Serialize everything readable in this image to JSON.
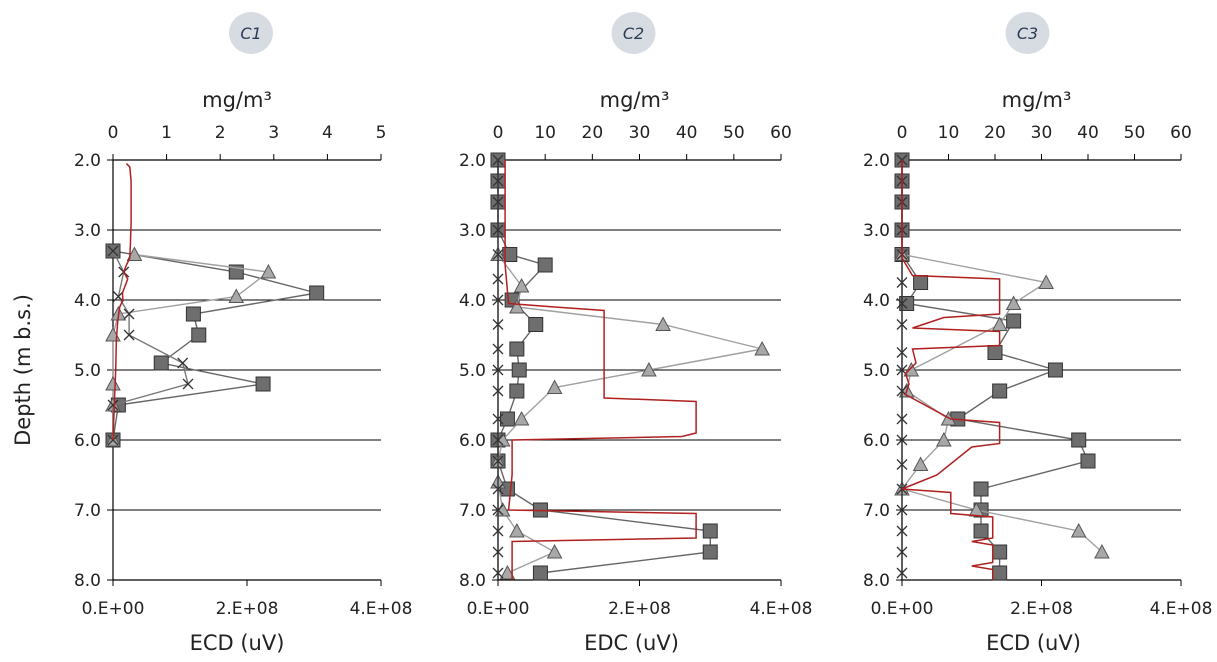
{
  "chart_data": [
    {
      "type": "line",
      "badge": "C1",
      "top_axis_label": "mg/m³",
      "top_ticks": [
        "0",
        "1",
        "2",
        "3",
        "4",
        "5"
      ],
      "top_range": [
        0,
        5
      ],
      "bottom_axis_label": "ECD (uV)",
      "bottom_ticks": [
        "0.E+00",
        "2.E+08",
        "4.E+08"
      ],
      "bottom_range": [
        0,
        400000000
      ],
      "ylabel": "Depth (m b.s.)",
      "yticks": [
        "2.0",
        "3.0",
        "4.0",
        "5.0",
        "6.0",
        "7.0",
        "8.0"
      ],
      "ylim": [
        2.0,
        8.0
      ],
      "grid": "horizontal",
      "series": [
        {
          "marker": "square",
          "color": "#666666",
          "axis": "top",
          "points": [
            [
              0.0,
              3.3
            ],
            [
              2.3,
              3.6
            ],
            [
              3.8,
              3.9
            ],
            [
              1.5,
              4.2
            ],
            [
              1.6,
              4.5
            ],
            [
              0.9,
              4.9
            ],
            [
              2.8,
              5.2
            ],
            [
              0.1,
              5.5
            ],
            [
              0.0,
              6.0
            ]
          ]
        },
        {
          "marker": "triangle",
          "color": "#a0a0a0",
          "axis": "top",
          "points": [
            [
              0.4,
              3.35
            ],
            [
              2.9,
              3.6
            ],
            [
              2.3,
              3.95
            ],
            [
              0.1,
              4.2
            ],
            [
              0.0,
              4.5
            ],
            [
              0.0,
              5.2
            ],
            [
              0.0,
              5.5
            ],
            [
              0.0,
              6.0
            ]
          ]
        },
        {
          "marker": "x",
          "color": "#777777",
          "axis": "top",
          "points": [
            [
              0.0,
              3.3
            ],
            [
              0.2,
              3.6
            ],
            [
              0.1,
              3.95
            ],
            [
              0.3,
              4.2
            ],
            [
              0.3,
              4.5
            ],
            [
              1.3,
              4.9
            ],
            [
              1.4,
              5.2
            ],
            [
              0.0,
              5.5
            ],
            [
              0.0,
              6.0
            ]
          ]
        },
        {
          "marker": "none",
          "color": "#b02020",
          "axis": "bottom",
          "points": [
            [
              20000000,
              2.05
            ],
            [
              25000000,
              2.1
            ],
            [
              27000000,
              2.3
            ],
            [
              27000000,
              2.6
            ],
            [
              27000000,
              2.9
            ],
            [
              26000000,
              3.2
            ],
            [
              25000000,
              3.4
            ],
            [
              20000000,
              3.5
            ],
            [
              16000000,
              3.6
            ],
            [
              22000000,
              3.7
            ],
            [
              18000000,
              3.8
            ],
            [
              14000000,
              3.9
            ],
            [
              15000000,
              4.0
            ],
            [
              10000000,
              4.1
            ],
            [
              7000000,
              4.3
            ],
            [
              5000000,
              4.6
            ],
            [
              4000000,
              5.0
            ],
            [
              2000000,
              5.5
            ],
            [
              0,
              6.0
            ]
          ]
        }
      ]
    },
    {
      "type": "line",
      "badge": "C2",
      "top_axis_label": "mg/m³",
      "top_ticks": [
        "0",
        "10",
        "20",
        "30",
        "40",
        "50",
        "60"
      ],
      "top_range": [
        0,
        60
      ],
      "bottom_axis_label": "EDC (uV)",
      "bottom_ticks": [
        "0.E+00",
        "2.E+08",
        "4.E+08"
      ],
      "bottom_range": [
        0,
        400000000
      ],
      "yticks": [
        "2.0",
        "3.0",
        "4.0",
        "5.0",
        "6.0",
        "7.0",
        "8.0"
      ],
      "ylim": [
        2.0,
        8.0
      ],
      "grid": "horizontal",
      "series": [
        {
          "marker": "square",
          "color": "#666666",
          "axis": "top",
          "points": [
            [
              0.0,
              2.0
            ],
            [
              0.0,
              2.3
            ],
            [
              0.0,
              2.6
            ],
            [
              0.0,
              3.0
            ],
            [
              2.5,
              3.35
            ],
            [
              10.0,
              3.5
            ],
            [
              3.0,
              4.0
            ],
            [
              8.0,
              4.35
            ],
            [
              4.0,
              4.7
            ],
            [
              4.5,
              5.0
            ],
            [
              4.0,
              5.3
            ],
            [
              2.0,
              5.7
            ],
            [
              0.0,
              6.0
            ],
            [
              0.0,
              6.3
            ],
            [
              2.0,
              6.7
            ],
            [
              9.0,
              7.0
            ],
            [
              45.0,
              7.3
            ],
            [
              45.0,
              7.6
            ],
            [
              9.0,
              7.9
            ]
          ]
        },
        {
          "marker": "triangle",
          "color": "#a0a0a0",
          "axis": "top",
          "points": [
            [
              0.0,
              3.35
            ],
            [
              5.0,
              3.8
            ],
            [
              4.0,
              4.1
            ],
            [
              35.0,
              4.35
            ],
            [
              56.0,
              4.7
            ],
            [
              32.0,
              5.0
            ],
            [
              12.0,
              5.25
            ],
            [
              5.0,
              5.7
            ],
            [
              1.0,
              6.0
            ],
            [
              0.0,
              6.3
            ],
            [
              0.0,
              6.6
            ],
            [
              1.0,
              7.0
            ],
            [
              4.0,
              7.3
            ],
            [
              12.0,
              7.6
            ],
            [
              2.0,
              7.9
            ]
          ]
        },
        {
          "marker": "x",
          "color": "#333333",
          "axis": "top",
          "points": [
            [
              0.0,
              2.0
            ],
            [
              0.0,
              2.3
            ],
            [
              0.0,
              2.6
            ],
            [
              0.0,
              3.0
            ],
            [
              0.0,
              3.35
            ],
            [
              0.0,
              3.7
            ],
            [
              0.0,
              4.0
            ],
            [
              0.0,
              4.35
            ],
            [
              0.0,
              4.7
            ],
            [
              0.0,
              5.0
            ],
            [
              0.0,
              5.3
            ],
            [
              0.0,
              5.7
            ],
            [
              0.0,
              6.0
            ],
            [
              0.0,
              6.3
            ],
            [
              0.0,
              6.7
            ],
            [
              0.0,
              7.0
            ],
            [
              0.0,
              7.3
            ],
            [
              0.0,
              7.6
            ],
            [
              0.0,
              7.9
            ]
          ]
        },
        {
          "marker": "none",
          "color": "#b02020",
          "axis": "bottom",
          "points": [
            [
              10000000,
              2.0
            ],
            [
              10000000,
              3.5
            ],
            [
              15000000,
              4.05
            ],
            [
              80000000,
              4.1
            ],
            [
              150000000,
              4.15
            ],
            [
              150000000,
              4.6
            ],
            [
              150000000,
              5.0
            ],
            [
              150000000,
              5.4
            ],
            [
              280000000,
              5.45
            ],
            [
              280000000,
              5.9
            ],
            [
              260000000,
              5.95
            ],
            [
              20000000,
              6.0
            ],
            [
              20000000,
              6.5
            ],
            [
              15000000,
              7.0
            ],
            [
              280000000,
              7.05
            ],
            [
              280000000,
              7.4
            ],
            [
              20000000,
              7.45
            ],
            [
              20000000,
              8.0
            ]
          ]
        }
      ]
    },
    {
      "type": "line",
      "badge": "C3",
      "top_axis_label": "mg/m³",
      "top_ticks": [
        "0",
        "10",
        "20",
        "30",
        "40",
        "50",
        "60"
      ],
      "top_range": [
        0,
        60
      ],
      "bottom_axis_label": "ECD (uV)",
      "bottom_ticks": [
        "0.E+00",
        "2.E+08",
        "4.E+08"
      ],
      "bottom_range": [
        0,
        400000000
      ],
      "yticks": [
        "2.0",
        "3.0",
        "4.0",
        "5.0",
        "6.0",
        "7.0",
        "8.0"
      ],
      "ylim": [
        2.0,
        8.0
      ],
      "grid": "horizontal",
      "series": [
        {
          "marker": "square",
          "color": "#666666",
          "axis": "top",
          "points": [
            [
              0.0,
              2.0
            ],
            [
              0.0,
              2.3
            ],
            [
              0.0,
              2.6
            ],
            [
              0.0,
              3.0
            ],
            [
              0.0,
              3.35
            ],
            [
              4.0,
              3.75
            ],
            [
              1.0,
              4.05
            ],
            [
              24.0,
              4.3
            ],
            [
              20.0,
              4.75
            ],
            [
              33.0,
              5.0
            ],
            [
              21.0,
              5.3
            ],
            [
              12.0,
              5.7
            ],
            [
              38.0,
              6.0
            ],
            [
              40.0,
              6.3
            ],
            [
              17.0,
              6.7
            ],
            [
              17.0,
              7.0
            ],
            [
              17.0,
              7.3
            ],
            [
              21.0,
              7.6
            ],
            [
              21.0,
              7.9
            ]
          ]
        },
        {
          "marker": "triangle",
          "color": "#a0a0a0",
          "axis": "top",
          "points": [
            [
              0.0,
              3.35
            ],
            [
              31.0,
              3.75
            ],
            [
              24.0,
              4.05
            ],
            [
              21.0,
              4.35
            ],
            [
              2.0,
              5.0
            ],
            [
              1.0,
              5.3
            ],
            [
              10.0,
              5.7
            ],
            [
              9.0,
              6.0
            ],
            [
              4.0,
              6.35
            ],
            [
              0.0,
              6.7
            ],
            [
              16.0,
              7.0
            ],
            [
              38.0,
              7.3
            ],
            [
              43.0,
              7.6
            ]
          ]
        },
        {
          "marker": "x",
          "color": "#333333",
          "axis": "top",
          "points": [
            [
              0.0,
              2.0
            ],
            [
              0.0,
              2.3
            ],
            [
              0.0,
              2.6
            ],
            [
              0.0,
              3.0
            ],
            [
              0.0,
              3.35
            ],
            [
              0.0,
              3.75
            ],
            [
              0.0,
              4.05
            ],
            [
              0.0,
              4.35
            ],
            [
              0.0,
              4.75
            ],
            [
              0.0,
              5.0
            ],
            [
              0.0,
              5.3
            ],
            [
              0.0,
              5.7
            ],
            [
              0.0,
              6.0
            ],
            [
              0.0,
              6.35
            ],
            [
              0.0,
              6.7
            ],
            [
              0.0,
              7.0
            ],
            [
              0.0,
              7.3
            ],
            [
              0.0,
              7.6
            ],
            [
              0.0,
              7.9
            ]
          ]
        },
        {
          "marker": "none",
          "color": "#b02020",
          "axis": "bottom",
          "points": [
            [
              0,
              2.0
            ],
            [
              0,
              3.4
            ],
            [
              15000000,
              3.65
            ],
            [
              140000000,
              3.7
            ],
            [
              140000000,
              4.2
            ],
            [
              60000000,
              4.25
            ],
            [
              15000000,
              4.4
            ],
            [
              140000000,
              4.45
            ],
            [
              140000000,
              4.65
            ],
            [
              15000000,
              4.7
            ],
            [
              20000000,
              4.9
            ],
            [
              5000000,
              5.05
            ],
            [
              10000000,
              5.2
            ],
            [
              5000000,
              5.35
            ],
            [
              70000000,
              5.7
            ],
            [
              140000000,
              5.75
            ],
            [
              140000000,
              6.05
            ],
            [
              100000000,
              6.1
            ],
            [
              50000000,
              6.5
            ],
            [
              0,
              6.7
            ],
            [
              70000000,
              6.75
            ],
            [
              70000000,
              7.05
            ],
            [
              130000000,
              7.1
            ],
            [
              130000000,
              7.4
            ],
            [
              100000000,
              7.45
            ],
            [
              130000000,
              7.5
            ],
            [
              130000000,
              7.75
            ],
            [
              100000000,
              7.8
            ],
            [
              130000000,
              7.85
            ],
            [
              130000000,
              8.0
            ]
          ]
        }
      ]
    }
  ]
}
